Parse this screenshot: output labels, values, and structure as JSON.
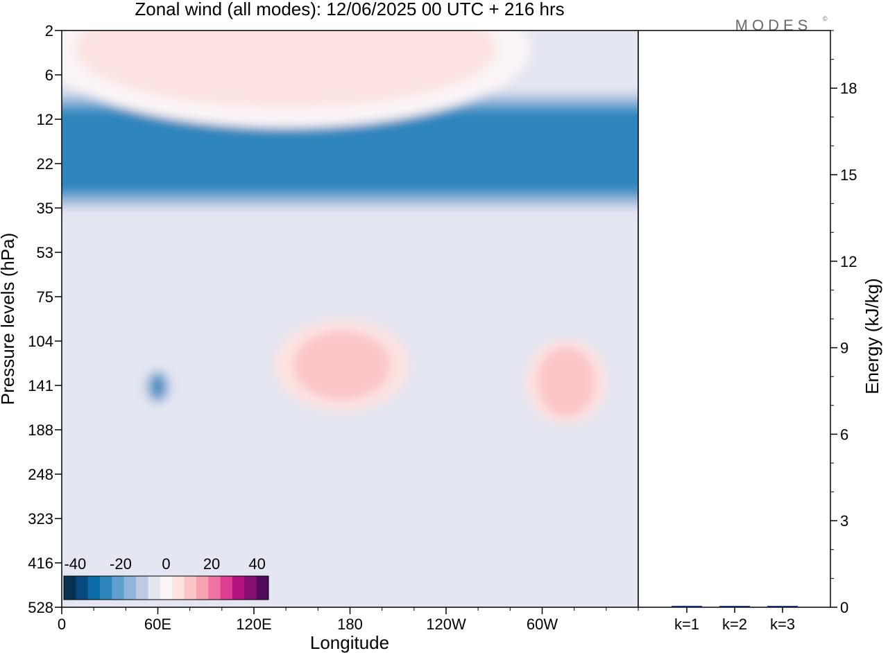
{
  "title": "Zonal wind (all modes):  12/06/2025  00 UTC  + 216 hrs",
  "brand": "MODES",
  "brand_mark": "©",
  "chart_data": [
    {
      "type": "heatmap",
      "variable": "Zonal wind",
      "xlabel": "Longitude",
      "ylabel": "Pressure levels (hPa)",
      "x_ticks": [
        "0",
        "60E",
        "120E",
        "180",
        "120W",
        "60W"
      ],
      "x_tick_deg": [
        0,
        60,
        120,
        180,
        240,
        300
      ],
      "x_range_deg": [
        0,
        360
      ],
      "y_ticks": [
        "2",
        "6",
        "12",
        "22",
        "35",
        "53",
        "75",
        "104",
        "141",
        "188",
        "248",
        "323",
        "416",
        "528"
      ],
      "y_range_hpa": [
        2,
        528
      ],
      "colorbar": {
        "tick_labels": [
          "-40",
          "-20",
          "0",
          "20",
          "40"
        ],
        "tick_values": [
          -40,
          -20,
          0,
          20,
          40
        ],
        "range": [
          -45,
          45
        ],
        "colors": [
          "#08304f",
          "#084a7e",
          "#0b6aa8",
          "#2f86bd",
          "#5fa0cf",
          "#92b6da",
          "#c0cbe3",
          "#e4e6f1",
          "#faf4f6",
          "#fde3e2",
          "#fcc6c9",
          "#f8a1b1",
          "#f071a3",
          "#dd3d93",
          "#b3147f",
          "#851072",
          "#4f0a5f"
        ]
      },
      "features": [
        {
          "name": "stratospheric easterly band",
          "lon": [
            0,
            360
          ],
          "hpa": [
            8,
            35
          ],
          "u": -28
        },
        {
          "name": "upper stratosphere westerlies",
          "lon": [
            50,
            230
          ],
          "hpa": [
            2,
            5
          ],
          "u": 6
        },
        {
          "name": "tropical easterly jet core",
          "lon": [
            55,
            65
          ],
          "hpa": [
            130,
            155
          ],
          "u": -32
        },
        {
          "name": "westerly region",
          "lon": [
            150,
            200
          ],
          "hpa": [
            100,
            150
          ],
          "u": 10
        },
        {
          "name": "westerly region",
          "lon": [
            300,
            330
          ],
          "hpa": [
            110,
            170
          ],
          "u": 10
        }
      ]
    },
    {
      "type": "bar",
      "ylabel": "Energy (kJ/kg)",
      "categories": [
        "k=1",
        "k=2",
        "k=3"
      ],
      "values": [
        0.05,
        0.04,
        0.03
      ],
      "ylim": [
        0,
        20
      ],
      "y_ticks": [
        "0",
        "3",
        "6",
        "9",
        "12",
        "15",
        "18"
      ],
      "y_tick_values": [
        0,
        3,
        6,
        9,
        12,
        15,
        18
      ]
    }
  ]
}
